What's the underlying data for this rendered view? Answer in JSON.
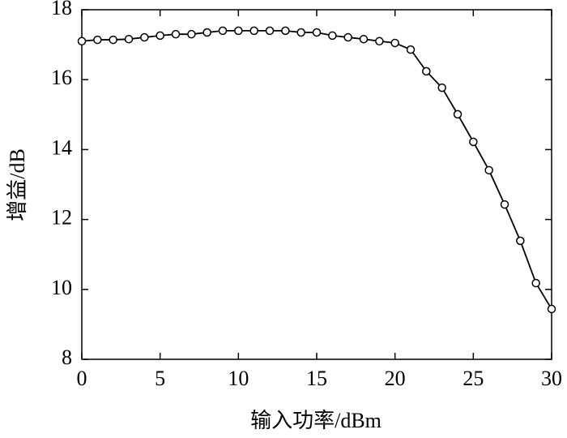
{
  "chart_data": {
    "type": "line",
    "x_label": "输入功率/dBm",
    "y_label": "增益/dB",
    "x": [
      0,
      1,
      2,
      3,
      4,
      5,
      6,
      7,
      8,
      9,
      10,
      11,
      12,
      13,
      14,
      15,
      16,
      17,
      18,
      19,
      20,
      21,
      22,
      23,
      24,
      25,
      26,
      27,
      28,
      29,
      30
    ],
    "series": [
      {
        "color": "#000000",
        "marker": "circle",
        "values": [
          17.1,
          17.14,
          17.14,
          17.16,
          17.21,
          17.26,
          17.3,
          17.3,
          17.35,
          17.4,
          17.4,
          17.4,
          17.4,
          17.4,
          17.35,
          17.35,
          17.26,
          17.21,
          17.16,
          17.1,
          17.05,
          16.86,
          16.24,
          15.77,
          15.01,
          14.22,
          13.41,
          12.43,
          11.39,
          10.18,
          9.44
        ]
      }
    ],
    "xlim": [
      0,
      30
    ],
    "xticks": [
      0,
      5,
      10,
      15,
      20,
      25,
      30
    ],
    "ylim": [
      8,
      18
    ],
    "yticks": [
      8,
      10,
      12,
      14,
      16,
      18
    ],
    "grid": false
  }
}
